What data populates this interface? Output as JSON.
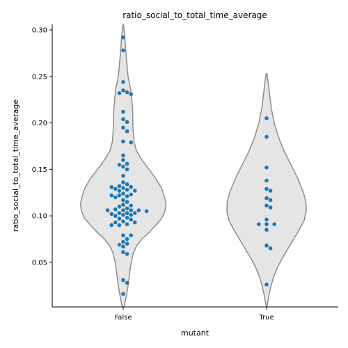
{
  "chart_data": {
    "type": "violin-swarm",
    "title": "ratio_social_to_total_time_average",
    "xlabel": "mutant",
    "ylabel": "ratio_social_to_total_time_average",
    "ylim": [
      0.002,
      0.306
    ],
    "yticks": [
      0.05,
      0.1,
      0.15,
      0.2,
      0.25,
      0.3
    ],
    "ytick_labels": [
      "0.05",
      "0.10",
      "0.15",
      "0.20",
      "0.25",
      "0.30"
    ],
    "categories": [
      "False",
      "True"
    ],
    "grid": false,
    "colors": {
      "violin_fill": "#e5e5e5",
      "violin_stroke": "#8c8c8c",
      "point": "#1f77b4",
      "axis": "#000000"
    },
    "groups": [
      {
        "category": "False",
        "values": [
          0.292,
          0.278,
          0.244,
          0.235,
          0.233,
          0.232,
          0.231,
          0.212,
          0.204,
          0.201,
          0.195,
          0.191,
          0.18,
          0.179,
          0.165,
          0.16,
          0.156,
          0.155,
          0.153,
          0.15,
          0.143,
          0.136,
          0.134,
          0.132,
          0.131,
          0.131,
          0.13,
          0.129,
          0.128,
          0.127,
          0.127,
          0.124,
          0.123,
          0.122,
          0.122,
          0.121,
          0.12,
          0.117,
          0.115,
          0.112,
          0.111,
          0.11,
          0.108,
          0.107,
          0.106,
          0.106,
          0.106,
          0.106,
          0.105,
          0.103,
          0.103,
          0.103,
          0.102,
          0.101,
          0.101,
          0.1,
          0.098,
          0.097,
          0.096,
          0.094,
          0.093,
          0.093,
          0.091,
          0.09,
          0.09,
          0.079,
          0.079,
          0.075,
          0.072,
          0.07,
          0.069,
          0.067,
          0.061,
          0.059,
          0.031,
          0.028,
          0.016
        ],
        "violin": [
          [
            0.306,
            0.5
          ],
          [
            0.29,
            2.5
          ],
          [
            0.27,
            4.5
          ],
          [
            0.25,
            7.0
          ],
          [
            0.235,
            11.0
          ],
          [
            0.215,
            13.5
          ],
          [
            0.195,
            14.0
          ],
          [
            0.18,
            15.5
          ],
          [
            0.17,
            19.0
          ],
          [
            0.16,
            27.0
          ],
          [
            0.15,
            37.0
          ],
          [
            0.14,
            47.0
          ],
          [
            0.13,
            55.0
          ],
          [
            0.12,
            59.5
          ],
          [
            0.112,
            61.5
          ],
          [
            0.105,
            60.0
          ],
          [
            0.097,
            55.0
          ],
          [
            0.09,
            47.0
          ],
          [
            0.082,
            37.0
          ],
          [
            0.075,
            27.0
          ],
          [
            0.068,
            19.5
          ],
          [
            0.06,
            14.5
          ],
          [
            0.05,
            11.5
          ],
          [
            0.04,
            9.5
          ],
          [
            0.03,
            8.0
          ],
          [
            0.02,
            6.0
          ],
          [
            0.01,
            3.5
          ],
          [
            0.002,
            1.5
          ]
        ]
      },
      {
        "category": "True",
        "values": [
          0.205,
          0.185,
          0.152,
          0.138,
          0.129,
          0.127,
          0.119,
          0.117,
          0.111,
          0.109,
          0.096,
          0.091,
          0.091,
          0.091,
          0.085,
          0.068,
          0.065,
          0.026
        ],
        "violin": [
          [
            0.253,
            0.5
          ],
          [
            0.245,
            2.0
          ],
          [
            0.23,
            4.5
          ],
          [
            0.215,
            7.0
          ],
          [
            0.2,
            11.0
          ],
          [
            0.185,
            17.0
          ],
          [
            0.17,
            25.0
          ],
          [
            0.155,
            35.0
          ],
          [
            0.14,
            45.0
          ],
          [
            0.125,
            53.0
          ],
          [
            0.115,
            56.5
          ],
          [
            0.105,
            57.0
          ],
          [
            0.095,
            54.0
          ],
          [
            0.085,
            47.0
          ],
          [
            0.075,
            39.0
          ],
          [
            0.065,
            31.0
          ],
          [
            0.055,
            23.0
          ],
          [
            0.045,
            16.0
          ],
          [
            0.035,
            10.5
          ],
          [
            0.025,
            6.5
          ],
          [
            0.015,
            3.5
          ],
          [
            0.002,
            0.5
          ]
        ]
      }
    ]
  }
}
